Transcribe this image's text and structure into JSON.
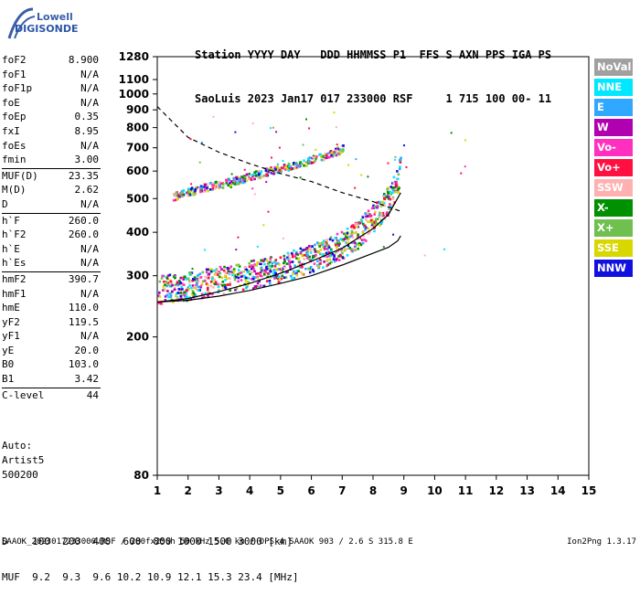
{
  "logo": {
    "line1": "Lowell",
    "line2": "DIGISONDE"
  },
  "header": {
    "line1": "Station YYYY DAY   DDD HHMMSS P1  FFS S AXN PPS IGA PS",
    "line2": "SaoLuis 2023 Jan17 017 233000 RSF     1 715 100 00- 11"
  },
  "params": [
    [
      {
        "label": "foF2",
        "value": "8.900"
      },
      {
        "label": "foF1",
        "value": "N/A"
      },
      {
        "label": "foF1p",
        "value": "N/A"
      },
      {
        "label": "foE",
        "value": "N/A"
      },
      {
        "label": "foEp",
        "value": "0.35"
      },
      {
        "label": "fxI",
        "value": "8.95"
      },
      {
        "label": "foEs",
        "value": "N/A"
      },
      {
        "label": "fmin",
        "value": "3.00"
      }
    ],
    [
      {
        "label": "MUF(D)",
        "value": "23.35"
      },
      {
        "label": "M(D)",
        "value": "2.62"
      },
      {
        "label": "D",
        "value": "N/A"
      }
    ],
    [
      {
        "label": "h`F",
        "value": "260.0"
      },
      {
        "label": "h`F2",
        "value": "260.0"
      },
      {
        "label": "h`E",
        "value": "N/A"
      },
      {
        "label": "h`Es",
        "value": "N/A"
      }
    ],
    [
      {
        "label": "hmF2",
        "value": "390.7"
      },
      {
        "label": "hmF1",
        "value": "N/A"
      },
      {
        "label": "hmE",
        "value": "110.0"
      },
      {
        "label": "yF2",
        "value": "119.5"
      },
      {
        "label": "yF1",
        "value": "N/A"
      },
      {
        "label": "yE",
        "value": "20.0"
      },
      {
        "label": "B0",
        "value": "103.0"
      },
      {
        "label": "B1",
        "value": "3.42"
      }
    ],
    [
      {
        "label": "C-level",
        "value": "44"
      }
    ]
  ],
  "notes": {
    "line1": "Auto:",
    "line2": "Artist5",
    "line3": "500200"
  },
  "legend": [
    {
      "label": "NoVal",
      "color": "#a0a0a0"
    },
    {
      "label": "NNE",
      "color": "#00e8ff"
    },
    {
      "label": "E",
      "color": "#30a8ff"
    },
    {
      "label": "W",
      "color": "#b000b0"
    },
    {
      "label": "Vo-",
      "color": "#ff30c0"
    },
    {
      "label": "Vo+",
      "color": "#ff1040"
    },
    {
      "label": "SSW",
      "color": "#ffb0b0"
    },
    {
      "label": "X-",
      "color": "#009000"
    },
    {
      "label": "X+",
      "color": "#70c050"
    },
    {
      "label": "SSE",
      "color": "#d8d800"
    },
    {
      "label": "NNW",
      "color": "#1010e0"
    }
  ],
  "footer": {
    "line1": "D    100  200  400  600  800 1000 1500 3000 [km]",
    "line2": "MUF  9.2  9.3  9.6 10.2 10.9 12.1 15.3 23.4 [MHz]",
    "line3": "SAAOK_2023017233000.RSF / 280fx256h 50 kHz 5.0 km / DPS-4 SAAOK 903 / 2.6 S 315.8 E",
    "version": "Ion2Png 1.3.17"
  },
  "chart_data": {
    "type": "scatter",
    "xlim": [
      1,
      15
    ],
    "xticks": [
      "1",
      "2",
      "3",
      "4",
      "5",
      "6",
      "7",
      "8",
      "9",
      "10",
      "11",
      "12",
      "13",
      "14",
      "15"
    ],
    "ylim": [
      80,
      1280
    ],
    "yticks": [
      "80",
      "200",
      "300",
      "400",
      "500",
      "600",
      "700",
      "800",
      "900",
      "1000",
      "1100",
      "1280"
    ],
    "yscale": "log",
    "grid": false,
    "legend_position": "right",
    "traces": [
      {
        "kind": "o-trace-F2",
        "x": [
          1.0,
          2.0,
          3.0,
          4.0,
          5.0,
          6.0,
          7.0,
          7.5,
          8.0,
          8.3,
          8.6,
          8.8,
          8.9
        ],
        "y": [
          255,
          262,
          272,
          282,
          295,
          315,
          345,
          370,
          410,
          440,
          480,
          540,
          620
        ]
      },
      {
        "kind": "second-hop",
        "x": [
          1.5,
          2.5,
          3.5,
          4.5,
          5.5,
          6.5,
          7.0
        ],
        "y": [
          510,
          540,
          565,
          600,
          630,
          670,
          700
        ]
      }
    ],
    "profile_curve": {
      "x": [
        1.0,
        2.0,
        3.0,
        4.0,
        5.0,
        6.0,
        7.0,
        8.0,
        8.5,
        8.8,
        8.9
      ],
      "y": [
        252,
        255,
        262,
        272,
        285,
        300,
        322,
        348,
        362,
        378,
        391
      ]
    },
    "muf_curve": {
      "x": [
        1.0,
        2.0,
        3.0,
        4.0,
        5.0,
        6.0,
        7.0,
        8.0,
        8.9
      ],
      "y": [
        920,
        750,
        680,
        630,
        590,
        560,
        520,
        490,
        460
      ]
    },
    "model_curve": {
      "x": [
        1.0,
        2.0,
        3.0,
        4.0,
        5.0,
        6.0,
        7.0,
        8.0,
        8.5,
        8.9
      ],
      "y": [
        252,
        258,
        270,
        285,
        305,
        330,
        360,
        410,
        450,
        520
      ]
    }
  }
}
